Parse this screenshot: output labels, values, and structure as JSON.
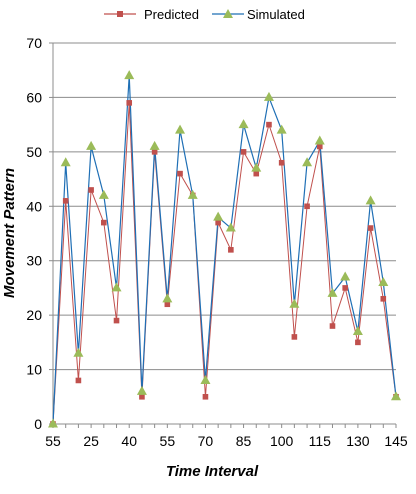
{
  "chart_data": {
    "type": "line",
    "title": "",
    "xlabel": "Time Interval",
    "ylabel": "Movement Pattern",
    "ylim": [
      0,
      70
    ],
    "yticks": [
      0,
      10,
      20,
      30,
      40,
      50,
      60,
      70
    ],
    "xtick_labels": [
      "55",
      "25",
      "40",
      "55",
      "70",
      "85",
      "100",
      "115",
      "130",
      "145"
    ],
    "grid": "horizontal",
    "legend_position": "top",
    "series": [
      {
        "name": "Predicted",
        "color": "#c0504d",
        "marker": "square",
        "values": [
          0,
          41,
          8,
          43,
          37,
          19,
          59,
          5,
          50,
          22,
          46,
          42,
          5,
          37,
          32,
          50,
          46,
          55,
          48,
          16,
          40,
          51,
          18,
          25,
          15,
          36,
          23,
          5
        ]
      },
      {
        "name": "Simulated",
        "color": "#1f6fb5",
        "marker": "triangle",
        "marker_color": "#9bbb59",
        "values": [
          0,
          48,
          13,
          51,
          42,
          25,
          64,
          6,
          51,
          23,
          54,
          42,
          8,
          38,
          36,
          55,
          47,
          60,
          54,
          22,
          48,
          52,
          24,
          27,
          17,
          41,
          26,
          5
        ]
      }
    ]
  }
}
